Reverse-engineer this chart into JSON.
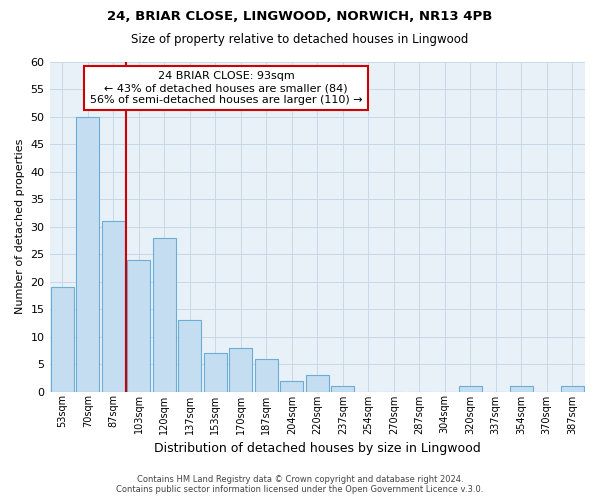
{
  "title1": "24, BRIAR CLOSE, LINGWOOD, NORWICH, NR13 4PB",
  "title2": "Size of property relative to detached houses in Lingwood",
  "xlabel": "Distribution of detached houses by size in Lingwood",
  "ylabel": "Number of detached properties",
  "bin_labels": [
    "53sqm",
    "70sqm",
    "87sqm",
    "103sqm",
    "120sqm",
    "137sqm",
    "153sqm",
    "170sqm",
    "187sqm",
    "204sqm",
    "220sqm",
    "237sqm",
    "254sqm",
    "270sqm",
    "287sqm",
    "304sqm",
    "320sqm",
    "337sqm",
    "354sqm",
    "370sqm",
    "387sqm"
  ],
  "bin_values": [
    19,
    50,
    31,
    24,
    28,
    13,
    7,
    8,
    6,
    2,
    3,
    1,
    0,
    0,
    0,
    0,
    1,
    0,
    1,
    0,
    1
  ],
  "bar_color": "#c5ddf0",
  "bar_edge_color": "#6aaed6",
  "bar_alpha": 1.0,
  "vline_color": "#cc0000",
  "annotation_box_text": "24 BRIAR CLOSE: 93sqm\n← 43% of detached houses are smaller (84)\n56% of semi-detached houses are larger (110) →",
  "annotation_box_color": "#cc0000",
  "ylim": [
    0,
    60
  ],
  "yticks": [
    0,
    5,
    10,
    15,
    20,
    25,
    30,
    35,
    40,
    45,
    50,
    55,
    60
  ],
  "footnote1": "Contains HM Land Registry data © Crown copyright and database right 2024.",
  "footnote2": "Contains public sector information licensed under the Open Government Licence v.3.0.",
  "bg_color": "#ffffff",
  "plot_bg_color": "#e8f0f8",
  "grid_color": "#c8d8e8"
}
